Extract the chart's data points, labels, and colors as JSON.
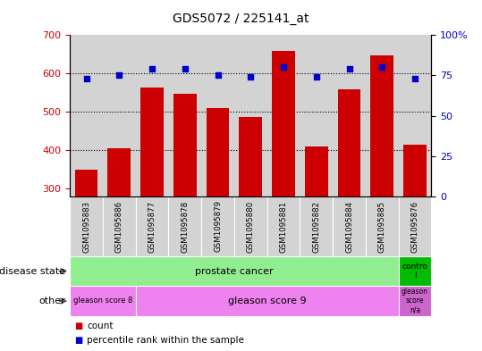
{
  "title": "GDS5072 / 225141_at",
  "samples": [
    "GSM1095883",
    "GSM1095886",
    "GSM1095877",
    "GSM1095878",
    "GSM1095879",
    "GSM1095880",
    "GSM1095881",
    "GSM1095882",
    "GSM1095884",
    "GSM1095885",
    "GSM1095876"
  ],
  "bar_values": [
    350,
    405,
    563,
    548,
    510,
    487,
    660,
    410,
    560,
    648,
    415
  ],
  "dot_values": [
    73,
    75,
    79,
    79,
    75,
    74,
    80,
    74,
    79,
    80,
    73
  ],
  "bar_color": "#cc0000",
  "dot_color": "#0000cc",
  "ylim_left": [
    280,
    700
  ],
  "ylim_right": [
    0,
    100
  ],
  "yticks_left": [
    300,
    400,
    500,
    600,
    700
  ],
  "yticks_right": [
    0,
    25,
    50,
    75,
    100
  ],
  "disease_state_labels": [
    {
      "label": "prostate cancer",
      "start": 0,
      "end": 9,
      "color": "#90ee90"
    },
    {
      "label": "contro\nl",
      "start": 10,
      "end": 10,
      "color": "#00bb00"
    }
  ],
  "other_labels": [
    {
      "label": "gleason score 8",
      "start": 0,
      "end": 1,
      "color": "#ee82ee"
    },
    {
      "label": "gleason score 9",
      "start": 2,
      "end": 9,
      "color": "#ee82ee"
    },
    {
      "label": "gleason\nscore\nn/a",
      "start": 10,
      "end": 10,
      "color": "#cc66cc"
    }
  ],
  "legend_count_label": "count",
  "legend_pct_label": "percentile rank within the sample",
  "row_label_disease": "disease state",
  "row_label_other": "other",
  "plot_bg_color": "#d3d3d3",
  "tick_bg_color": "#d3d3d3"
}
